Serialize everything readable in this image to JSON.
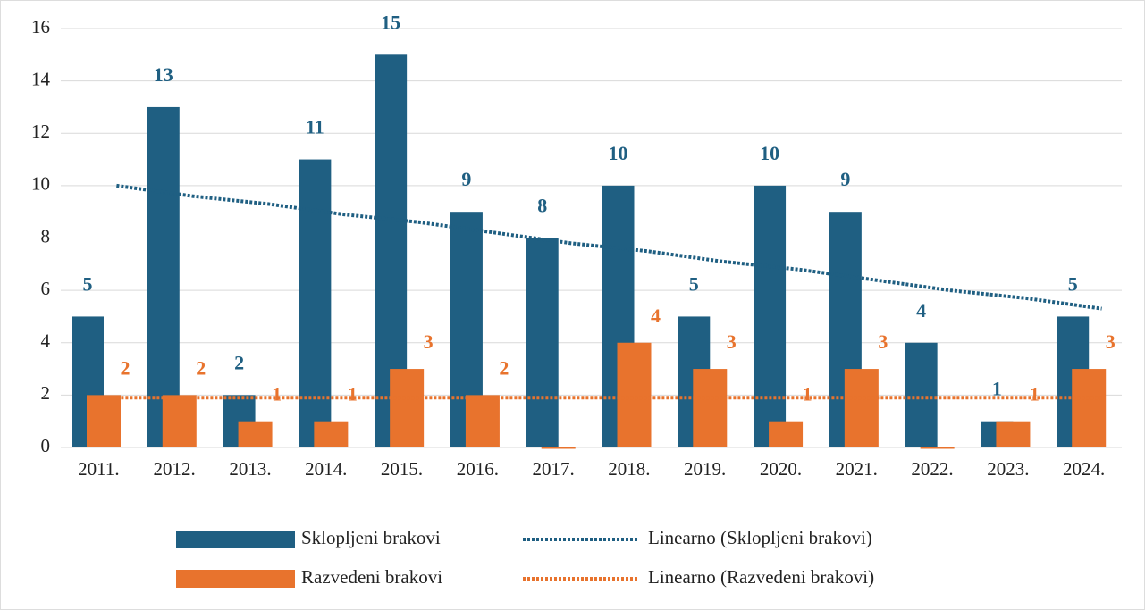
{
  "chart_data": {
    "type": "bar",
    "categories": [
      "2011.",
      "2012.",
      "2013.",
      "2014.",
      "2015.",
      "2016.",
      "2017.",
      "2018.",
      "2019.",
      "2020.",
      "2021.",
      "2022.",
      "2023.",
      "2024."
    ],
    "series": [
      {
        "name": "Sklopljeni brakovi",
        "color": "#1f5f82",
        "values": [
          5,
          13,
          2,
          11,
          15,
          9,
          8,
          10,
          5,
          10,
          9,
          4,
          1,
          5
        ]
      },
      {
        "name": "Razvedeni brakovi",
        "color": "#e8732d",
        "values": [
          2,
          2,
          1,
          1,
          3,
          2,
          0,
          4,
          3,
          1,
          3,
          0,
          1,
          3
        ],
        "value_labels": [
          "2",
          "2",
          "1",
          "1",
          "3",
          "2",
          null,
          "4",
          "3",
          "1",
          "3",
          null,
          "1",
          "3"
        ]
      },
      {
        "name": "Linearno (Sklopljeni brakovi)",
        "type": "line",
        "dotted": true,
        "color": "#1f5f82",
        "values": [
          10.0,
          9.6,
          9.3,
          8.9,
          8.6,
          8.2,
          7.8,
          7.5,
          7.1,
          6.8,
          6.4,
          6.0,
          5.7,
          5.3
        ]
      },
      {
        "name": "Linearno (Razvedeni brakovi)",
        "type": "line",
        "dotted": true,
        "color": "#e8732d",
        "values": [
          1.9,
          1.9,
          1.9,
          1.9,
          1.9,
          1.9,
          1.9,
          1.9,
          1.9,
          1.9,
          1.9,
          1.9,
          1.9,
          1.9
        ]
      }
    ],
    "ylim": [
      0,
      16
    ],
    "yticks": [
      0,
      2,
      4,
      6,
      8,
      10,
      12,
      14,
      16
    ],
    "grid": true,
    "legend": "bottom"
  }
}
